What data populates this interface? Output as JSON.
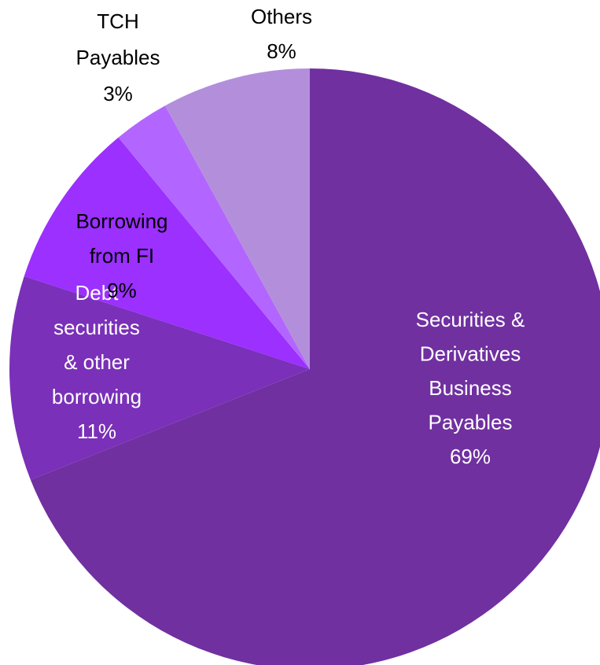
{
  "chart_data": {
    "type": "pie",
    "title": "",
    "start_angle_deg": 0,
    "direction": "clockwise",
    "slices": [
      {
        "name": "Securities & Derivatives Business Payables",
        "value": 69,
        "label_lines": [
          "Securities &",
          "Derivatives",
          "Business",
          "Payables",
          "69%"
        ],
        "color": "#7030a0",
        "label_color": "#ffffff"
      },
      {
        "name": "Debt securities & other borrowing",
        "value": 11,
        "label_lines": [
          "Debt",
          "securities",
          "& other",
          "borrowing",
          "11%"
        ],
        "color": "#7a30b8",
        "label_color": "#ffffff"
      },
      {
        "name": "Borrowing from FI",
        "value": 9,
        "label_lines": [
          "Borrowing",
          "from FI",
          "9%"
        ],
        "color": "#9b30ff",
        "label_color": "#000000"
      },
      {
        "name": "TCH Payables",
        "value": 3,
        "label_lines": [
          "TCH",
          "Payables",
          "3%"
        ],
        "color": "#b366ff",
        "label_color": "#000000"
      },
      {
        "name": "Others",
        "value": 8,
        "label_lines": [
          "Others",
          "8%"
        ],
        "color": "#b38fdb",
        "label_color": "#000000"
      }
    ]
  }
}
